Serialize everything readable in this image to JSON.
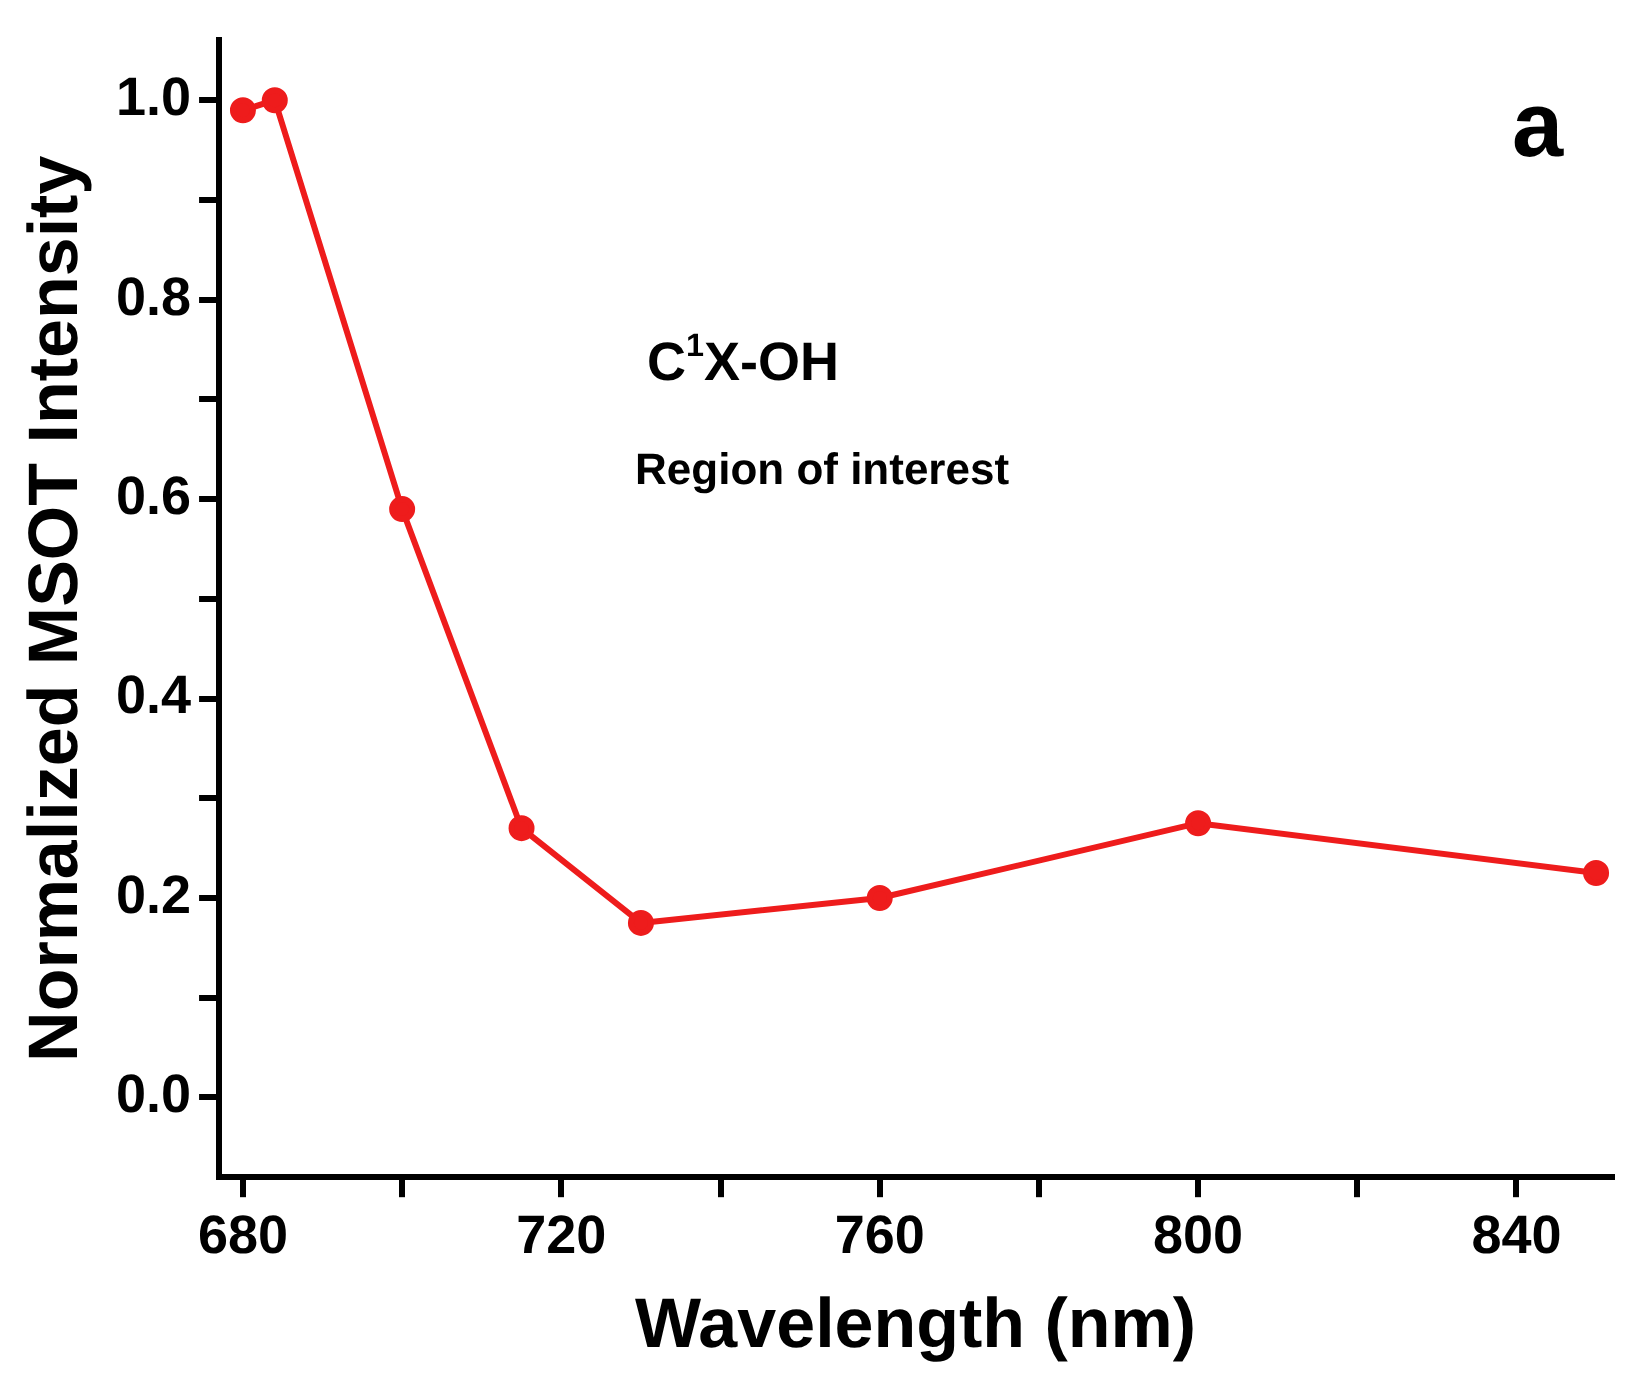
{
  "chart_data": {
    "type": "line",
    "xlabel": "Wavelength (nm)",
    "ylabel": "Normalized MSOT Intensity",
    "annotations": [
      "a",
      "C$^{1}$X-OH",
      "Region of interest"
    ],
    "x": [
      680,
      684,
      700,
      715,
      730,
      760,
      800,
      850
    ],
    "series": [
      {
        "color": "#ee1c1c",
        "values": [
          0.99,
          1.0,
          0.59,
          0.27,
          0.175,
          0.2,
          0.275,
          0.225
        ]
      }
    ],
    "xlim": [
      677,
      852
    ],
    "ylim": [
      -0.08,
      1.06
    ],
    "xticks": [
      680,
      {
        "value": 700,
        "label": null
      },
      720,
      {
        "value": 740,
        "label": null
      },
      760,
      {
        "value": 780,
        "label": null
      },
      800,
      {
        "value": 820,
        "label": null
      },
      840
    ],
    "yticks": [
      {
        "value": 0,
        "label": "0.0"
      },
      {
        "value": 0.1,
        "label": null
      },
      {
        "value": 0.2,
        "label": "0.2"
      },
      {
        "value": 0.3,
        "label": null
      },
      {
        "value": 0.4,
        "label": "0.4"
      },
      {
        "value": 0.5,
        "label": null
      },
      {
        "value": 0.6,
        "label": "0.6"
      },
      {
        "value": 0.7,
        "label": null
      },
      {
        "value": 0.8,
        "label": "0.8"
      },
      {
        "value": 0.9,
        "label": null
      },
      {
        "value": 1,
        "label": "1.0"
      }
    ],
    "marker": "circle",
    "line_style": "solid",
    "grid": false,
    "legend": false
  }
}
